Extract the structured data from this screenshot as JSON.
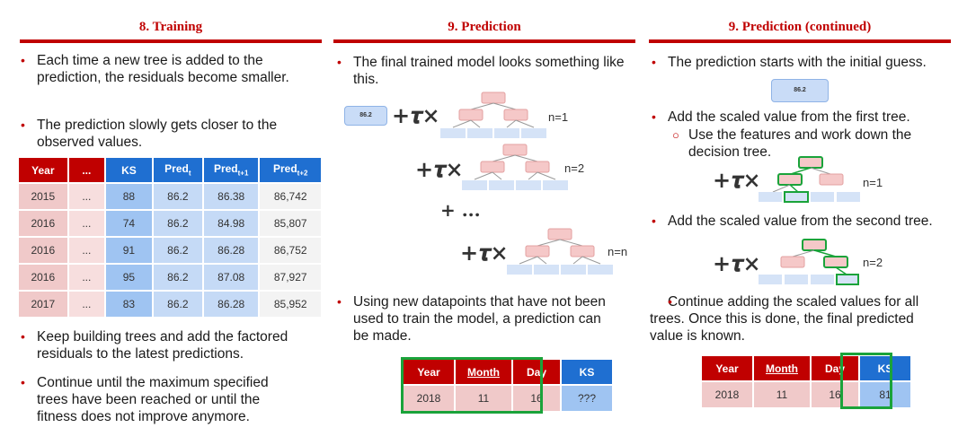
{
  "col1": {
    "title": "8. Training",
    "bullet1": "Each time a new tree is added to the prediction, the residuals become smaller.",
    "bullet2": "The prediction slowly gets closer to the observed values.",
    "bullet3": "Keep building trees and add the factored residuals to the latest predictions.",
    "bullet4": "Continue until the maximum specified trees have been reached or until the fitness does not improve anymore.",
    "table": {
      "headers": [
        "Year",
        "...",
        "KS",
        "Pred",
        "Pred",
        "Pred"
      ],
      "header_subs": [
        "",
        "",
        "",
        "t",
        "t+1",
        "t+2"
      ],
      "rows": [
        [
          "2015",
          "...",
          "88",
          "86.2",
          "86.38",
          "86,742"
        ],
        [
          "2016",
          "...",
          "74",
          "86.2",
          "84.98",
          "85,807"
        ],
        [
          "2016",
          "...",
          "91",
          "86.2",
          "86.28",
          "86,752"
        ],
        [
          "2016",
          "...",
          "95",
          "86.2",
          "87.08",
          "87,927"
        ],
        [
          "2017",
          "...",
          "83",
          "86.2",
          "86.28",
          "85,952"
        ]
      ]
    }
  },
  "col2": {
    "title": "9. Prediction",
    "bullet1": "The final trained model looks something like this.",
    "bullet2": "Using new datapoints that have not been used to train the model, a prediction can be made.",
    "init_value": "86.2",
    "plus_tau": "+𝝉×",
    "ellipsis": "+ ...",
    "n_labels": [
      "n=1",
      "n=2",
      "n=n"
    ],
    "table": {
      "headers": [
        "Year",
        "Month",
        "Day",
        "KS"
      ],
      "row": [
        "2018",
        "11",
        "16",
        "???"
      ]
    }
  },
  "col3": {
    "title": "9. Prediction (continued)",
    "bullet1": "The prediction starts with the initial guess.",
    "init_value": "86.2",
    "bullet2": "Add the scaled value from the first tree.",
    "sub1": "Use the features and work down the decision tree.",
    "bullet3": "Add the scaled value from the second tree.",
    "bullet4": "Continue adding the scaled values for all trees. Once this is done, the final predicted value is known.",
    "plus_tau": "+𝝉×",
    "n_labels": [
      "n=1",
      "n=2"
    ],
    "table": {
      "headers": [
        "Year",
        "Month",
        "Day",
        "KS"
      ],
      "row": [
        "2018",
        "11",
        "16",
        "81"
      ]
    }
  },
  "colors": {
    "accent": "#c00000",
    "header_blue": "#1f6fd1",
    "green": "#1aa33a",
    "pink": "#f0c9c9",
    "light_blue": "#9fc4f2"
  }
}
